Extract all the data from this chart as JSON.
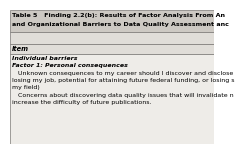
{
  "title_line1": "Table 5   Finding 2.2(b): Results of Factor Analysis From An",
  "title_line2": "and Organizational Barriers to Data Quality Assessment anc",
  "header": "Item",
  "section1": "Individual barriers",
  "factor1": "Factor 1: Personal consequences",
  "body_line1": "   Unknown consequences to my career should I discover and disclose",
  "body_line2": "losing my job, potential for attaining future federal funding, or losing s",
  "body_line3": "my field)",
  "body_line4": "   Concerns about discovering data quality issues that will invalidate n",
  "body_line5": "increase the difficulty of future publications.",
  "bg_title": "#cdc9c3",
  "bg_header_empty": "#e0ddd8",
  "bg_header": "#e0ddd8",
  "bg_body": "#eeece8",
  "border_color": "#7a7774",
  "title_fontsize": 4.6,
  "header_fontsize": 4.8,
  "body_fontsize": 4.5
}
